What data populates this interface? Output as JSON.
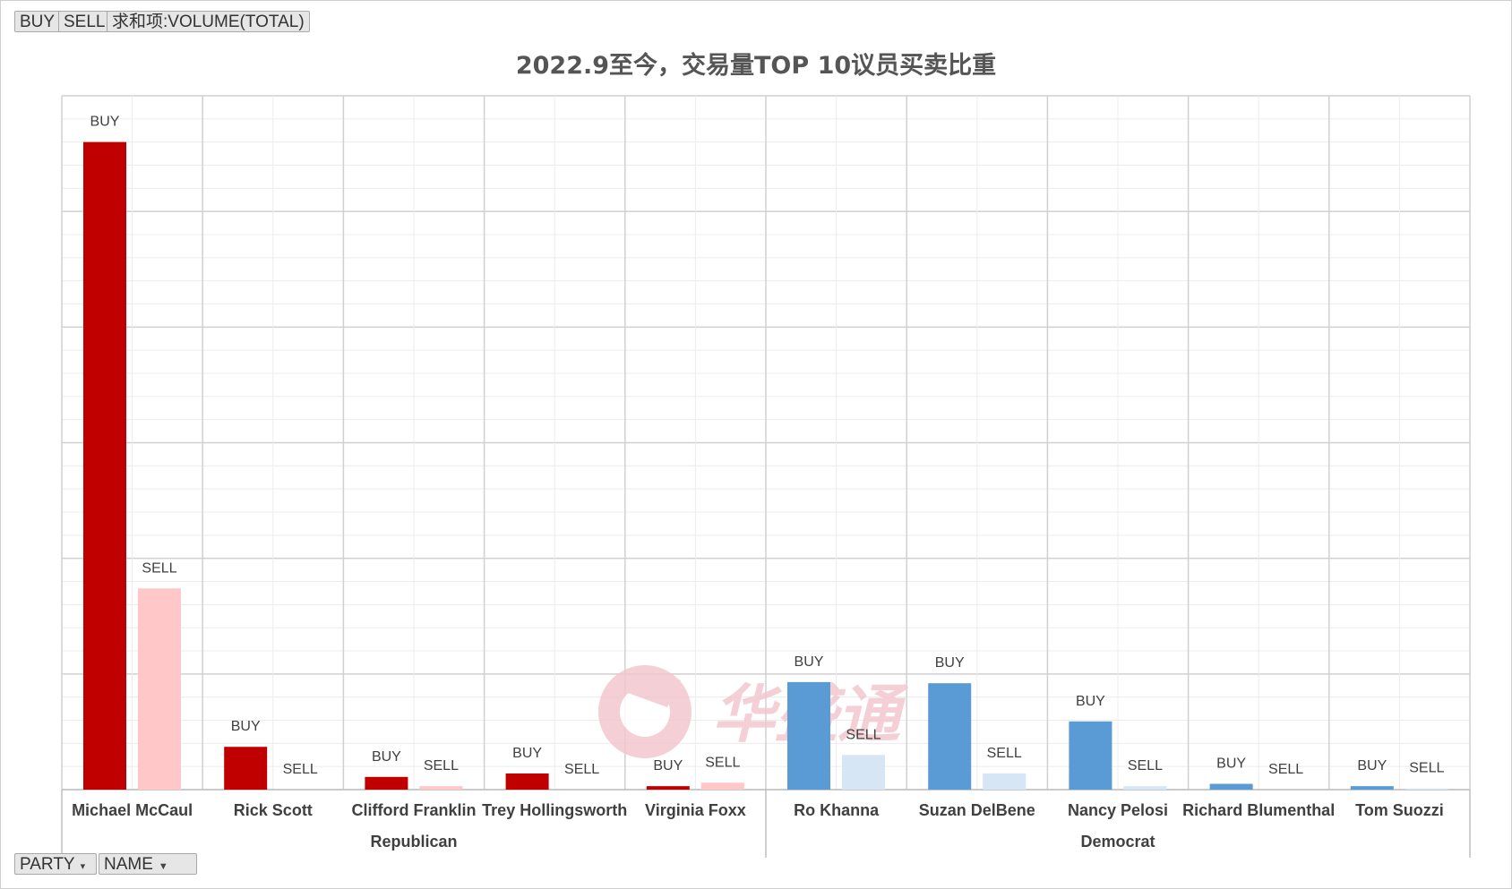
{
  "pivot_buttons": {
    "buy": "BUY",
    "sell": "SELL",
    "field": "求和项:VOLUME(TOTAL)",
    "party": "PARTY",
    "name": "NAME"
  },
  "watermark": "华盛通",
  "colors": {
    "republican_buy": "#c00000",
    "republican_sell": "#ffc7c7",
    "democrat_buy": "#5b9bd5",
    "democrat_sell": "#d6e6f5",
    "grid_major": "#d0d0d0",
    "grid_minor": "#ececec"
  },
  "chart_data": {
    "type": "bar",
    "title": "2022.9至今，交易量TOP 10议员买卖比重",
    "xlabel": "",
    "ylabel": "",
    "ylim": [
      0,
      600
    ],
    "grid": true,
    "legend": "none",
    "series": [
      {
        "name": "BUY",
        "values": [
          560,
          37,
          11,
          14,
          3,
          93,
          92,
          59,
          5,
          3
        ]
      },
      {
        "name": "SELL",
        "values": [
          174,
          0,
          3,
          0,
          6,
          30,
          14,
          3,
          0,
          1
        ]
      }
    ],
    "categories": [
      "Michael McCaul",
      "Rick Scott",
      "Clifford Franklin",
      "Trey Hollingsworth",
      "Virginia Foxx",
      "Ro Khanna",
      "Suzan DelBene",
      "Nancy Pelosi",
      "Richard Blumenthal",
      "Tom Suozzi"
    ],
    "parties": [
      "Republican",
      "Republican",
      "Republican",
      "Republican",
      "Republican",
      "Democrat",
      "Democrat",
      "Democrat",
      "Democrat",
      "Democrat"
    ],
    "groups": [
      {
        "name": "Republican",
        "start": 0,
        "end": 4
      },
      {
        "name": "Democrat",
        "start": 5,
        "end": 9
      }
    ],
    "data_labels": {
      "buy": "BUY",
      "sell": "SELL"
    }
  }
}
